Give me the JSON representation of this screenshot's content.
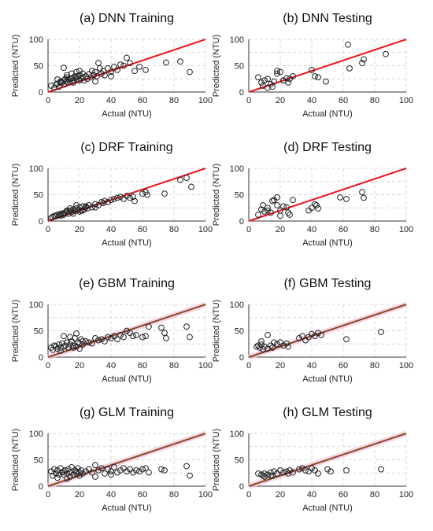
{
  "figure": {
    "colors": {
      "line_red": "#e8141c",
      "line_brown": "#8a4a1c",
      "line_pink_halo": "#f5c4e4",
      "grid": "#d9d9d9",
      "axis": "#333333",
      "marker": "#222222"
    }
  },
  "chart_data": [
    {
      "type": "scatter",
      "title": "(a) DNN Training",
      "xlabel": "Actual (NTU)",
      "ylabel": "Predicted (NTU)",
      "xlim": [
        0,
        100
      ],
      "ylim": [
        0,
        100
      ],
      "xticks": [
        "0",
        "20",
        "40",
        "60",
        "80",
        "100"
      ],
      "yticks": [
        "0",
        "50",
        "100"
      ],
      "grid": "dashed",
      "reference_line": "y=x",
      "line_style": "red",
      "x": [
        2,
        4,
        5,
        6,
        7,
        8,
        9,
        10,
        10,
        11,
        12,
        12,
        13,
        14,
        15,
        15,
        16,
        17,
        18,
        18,
        19,
        20,
        20,
        21,
        22,
        23,
        24,
        25,
        26,
        27,
        28,
        29,
        30,
        31,
        32,
        33,
        34,
        35,
        36,
        38,
        40,
        42,
        44,
        46,
        48,
        50,
        52,
        55,
        58,
        62,
        75,
        84,
        90,
        10,
        12,
        14,
        16,
        18,
        20,
        22,
        8,
        6,
        30,
        40
      ],
      "y": [
        12,
        8,
        14,
        16,
        10,
        20,
        18,
        22,
        14,
        25,
        20,
        28,
        24,
        19,
        26,
        35,
        22,
        30,
        28,
        24,
        30,
        32,
        40,
        26,
        28,
        22,
        30,
        25,
        34,
        28,
        40,
        32,
        38,
        30,
        55,
        45,
        35,
        40,
        32,
        45,
        38,
        48,
        42,
        52,
        50,
        65,
        55,
        40,
        48,
        42,
        56,
        58,
        38,
        46,
        32,
        25,
        18,
        38,
        22,
        35,
        18,
        24,
        20,
        30
      ]
    },
    {
      "type": "scatter",
      "title": "(b) DNN Testing",
      "xlabel": "Actual (NTU)",
      "ylabel": "Predicted (NTU)",
      "xlim": [
        0,
        100
      ],
      "ylim": [
        0,
        100
      ],
      "xticks": [
        "0",
        "20",
        "40",
        "60",
        "80",
        "100"
      ],
      "yticks": [
        "0",
        "50",
        "100"
      ],
      "grid": "dashed",
      "reference_line": "y=x",
      "line_style": "red",
      "x": [
        6,
        8,
        9,
        10,
        12,
        14,
        15,
        16,
        18,
        20,
        22,
        24,
        25,
        26,
        28,
        40,
        42,
        44,
        49,
        63,
        64,
        72,
        73,
        87,
        12,
        18,
        22
      ],
      "y": [
        28,
        18,
        12,
        22,
        25,
        15,
        10,
        20,
        40,
        38,
        22,
        26,
        18,
        25,
        30,
        42,
        30,
        28,
        20,
        90,
        45,
        55,
        62,
        72,
        8,
        35,
        22
      ]
    },
    {
      "type": "scatter",
      "title": "(c) DRF Training",
      "xlabel": "Actual (NTU)",
      "ylabel": "Predicted (NTU)",
      "xlim": [
        0,
        100
      ],
      "ylim": [
        0,
        100
      ],
      "xticks": [
        "0",
        "20",
        "40",
        "60",
        "80",
        "100"
      ],
      "yticks": [
        "0",
        "50",
        "100"
      ],
      "grid": "dashed",
      "reference_line": "y=x",
      "line_style": "red",
      "x": [
        2,
        3,
        4,
        5,
        6,
        7,
        8,
        9,
        10,
        11,
        12,
        13,
        14,
        15,
        16,
        17,
        18,
        19,
        20,
        21,
        22,
        23,
        24,
        25,
        26,
        28,
        30,
        32,
        34,
        35,
        36,
        38,
        40,
        42,
        44,
        46,
        48,
        50,
        52,
        54,
        55,
        60,
        62,
        63,
        74,
        84,
        88,
        91,
        10,
        12,
        14,
        16,
        18,
        20,
        8,
        22,
        24,
        30
      ],
      "y": [
        6,
        8,
        10,
        9,
        12,
        11,
        14,
        13,
        15,
        16,
        18,
        14,
        20,
        17,
        22,
        19,
        24,
        21,
        26,
        20,
        28,
        22,
        26,
        24,
        30,
        26,
        32,
        30,
        36,
        34,
        38,
        36,
        40,
        42,
        44,
        46,
        42,
        48,
        44,
        46,
        38,
        52,
        55,
        50,
        52,
        78,
        82,
        65,
        12,
        20,
        24,
        14,
        30,
        18,
        10,
        20,
        28,
        26
      ]
    },
    {
      "type": "scatter",
      "title": "(d) DRF Testing",
      "xlabel": "Actual (NTU)",
      "ylabel": "Predicted (NTU)",
      "xlim": [
        0,
        100
      ],
      "ylim": [
        0,
        100
      ],
      "xticks": [
        "0",
        "20",
        "40",
        "60",
        "80",
        "100"
      ],
      "yticks": [
        "0",
        "50",
        "100"
      ],
      "grid": "dashed",
      "reference_line": "y=x",
      "line_style": "red",
      "x": [
        6,
        8,
        9,
        10,
        12,
        14,
        15,
        16,
        18,
        20,
        22,
        24,
        25,
        26,
        28,
        38,
        40,
        42,
        43,
        44,
        58,
        62,
        72,
        73,
        12,
        18,
        20
      ],
      "y": [
        12,
        22,
        30,
        18,
        25,
        16,
        38,
        40,
        45,
        20,
        28,
        26,
        16,
        12,
        40,
        20,
        25,
        32,
        30,
        24,
        45,
        42,
        55,
        44,
        20,
        30,
        10
      ]
    },
    {
      "type": "scatter",
      "title": "(e) GBM Training",
      "xlabel": "Actual (NTU)",
      "ylabel": "Predicted (NTU)",
      "xlim": [
        0,
        100
      ],
      "ylim": [
        0,
        100
      ],
      "xticks": [
        "0",
        "20",
        "40",
        "60",
        "80",
        "100"
      ],
      "yticks": [
        "0",
        "50",
        "100"
      ],
      "grid": "dashed",
      "reference_line": "y=x",
      "line_style": "brown",
      "x": [
        2,
        3,
        4,
        5,
        6,
        7,
        8,
        9,
        10,
        11,
        12,
        13,
        14,
        15,
        16,
        17,
        18,
        19,
        20,
        21,
        22,
        24,
        26,
        28,
        30,
        32,
        34,
        36,
        38,
        40,
        42,
        44,
        46,
        48,
        50,
        52,
        54,
        56,
        60,
        62,
        64,
        72,
        74,
        75,
        88,
        90,
        10,
        14,
        18,
        22,
        8,
        12,
        16,
        20
      ],
      "y": [
        18,
        14,
        22,
        20,
        16,
        24,
        18,
        26,
        20,
        22,
        28,
        18,
        24,
        30,
        22,
        36,
        20,
        28,
        26,
        34,
        24,
        30,
        28,
        26,
        36,
        32,
        34,
        30,
        38,
        36,
        40,
        34,
        42,
        38,
        50,
        46,
        40,
        42,
        38,
        40,
        58,
        56,
        46,
        36,
        58,
        38,
        40,
        38,
        45,
        30,
        12,
        28,
        18,
        16
      ]
    },
    {
      "type": "scatter",
      "title": "(f) GBM Testing",
      "xlabel": "Actual (NTU)",
      "ylabel": "Predicted (NTU)",
      "xlim": [
        0,
        100
      ],
      "ylim": [
        0,
        100
      ],
      "xticks": [
        "0",
        "20",
        "40",
        "60",
        "80",
        "100"
      ],
      "yticks": [
        "0",
        "50",
        "100"
      ],
      "grid": "dashed",
      "reference_line": "y=x",
      "line_style": "brown",
      "x": [
        5,
        6,
        7,
        8,
        9,
        10,
        12,
        14,
        15,
        16,
        18,
        20,
        22,
        24,
        25,
        32,
        34,
        36,
        38,
        40,
        42,
        44,
        46,
        62,
        84,
        8,
        12
      ],
      "y": [
        20,
        22,
        18,
        24,
        15,
        20,
        42,
        22,
        18,
        28,
        25,
        28,
        22,
        26,
        20,
        36,
        40,
        32,
        38,
        44,
        40,
        46,
        42,
        34,
        48,
        30,
        16
      ]
    },
    {
      "type": "scatter",
      "title": "(g) GLM Training",
      "xlabel": "Actual (NTU)",
      "ylabel": "Predicted (NTU)",
      "xlim": [
        0,
        100
      ],
      "ylim": [
        0,
        100
      ],
      "xticks": [
        "0",
        "20",
        "40",
        "60",
        "80",
        "100"
      ],
      "yticks": [
        "0",
        "50",
        "100"
      ],
      "grid": "dashed",
      "reference_line": "y=x",
      "line_style": "brown",
      "x": [
        2,
        3,
        4,
        5,
        6,
        7,
        8,
        9,
        10,
        11,
        12,
        13,
        14,
        15,
        16,
        17,
        18,
        19,
        20,
        21,
        22,
        24,
        26,
        28,
        30,
        32,
        34,
        36,
        38,
        40,
        42,
        44,
        46,
        48,
        50,
        52,
        54,
        56,
        58,
        60,
        62,
        64,
        72,
        74,
        88,
        90,
        10,
        14,
        18,
        6,
        12,
        20,
        30,
        40
      ],
      "y": [
        28,
        20,
        32,
        24,
        30,
        22,
        34,
        26,
        28,
        30,
        24,
        32,
        26,
        36,
        22,
        30,
        28,
        34,
        26,
        30,
        24,
        28,
        32,
        26,
        40,
        30,
        34,
        24,
        32,
        28,
        36,
        26,
        30,
        34,
        28,
        32,
        26,
        30,
        28,
        32,
        34,
        26,
        32,
        30,
        38,
        20,
        22,
        18,
        24,
        16,
        14,
        20,
        18,
        22
      ]
    },
    {
      "type": "scatter",
      "title": "(h) GLM Testing",
      "xlabel": "Actual (NTU)",
      "ylabel": "Predicted (NTU)",
      "xlim": [
        0,
        100
      ],
      "ylim": [
        0,
        100
      ],
      "xticks": [
        "0",
        "20",
        "40",
        "60",
        "80",
        "100"
      ],
      "yticks": [
        "0",
        "50",
        "100"
      ],
      "grid": "dashed",
      "reference_line": "y=x",
      "line_style": "brown",
      "x": [
        6,
        8,
        9,
        10,
        12,
        14,
        15,
        16,
        18,
        20,
        22,
        24,
        25,
        26,
        28,
        32,
        34,
        36,
        38,
        40,
        42,
        44,
        50,
        52,
        62,
        84,
        10,
        14
      ],
      "y": [
        24,
        22,
        20,
        24,
        22,
        26,
        20,
        28,
        24,
        30,
        26,
        28,
        24,
        30,
        26,
        32,
        34,
        30,
        28,
        34,
        30,
        24,
        32,
        28,
        30,
        32,
        18,
        20
      ]
    }
  ]
}
